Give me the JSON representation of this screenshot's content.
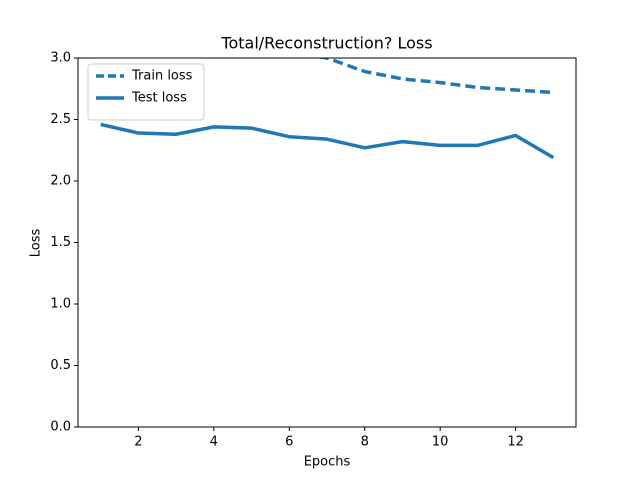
{
  "chart_data": {
    "type": "line",
    "title": "Total/Reconstruction? Loss",
    "x_label": "Epochs",
    "y_label": "Loss",
    "x": [
      1,
      2,
      3,
      4,
      5,
      6,
      7,
      8,
      9,
      10,
      11,
      12,
      13
    ],
    "series": [
      {
        "name": "Train loss",
        "color": "#1f77b4",
        "style": "dashed",
        "values": [
          null,
          null,
          null,
          null,
          null,
          3.05,
          3.0,
          2.89,
          2.83,
          2.8,
          2.76,
          2.74,
          2.72
        ]
      },
      {
        "name": "Test loss",
        "color": "#1f77b4",
        "style": "solid",
        "values": [
          2.46,
          2.39,
          2.38,
          2.44,
          2.43,
          2.36,
          2.34,
          2.27,
          2.32,
          2.29,
          2.29,
          2.37,
          2.19
        ]
      }
    ],
    "xlim": [
      0.4,
      13.6
    ],
    "ylim": [
      0,
      3
    ],
    "xticks": [
      2,
      4,
      6,
      8,
      10,
      12
    ],
    "yticks": [
      {
        "value": 0,
        "label": "0.0"
      },
      {
        "value": 0.5,
        "label": "0.5"
      },
      {
        "value": 1,
        "label": "1.0"
      },
      {
        "value": 1.5,
        "label": "1.5"
      },
      {
        "value": 2,
        "label": "2.0"
      },
      {
        "value": 2.5,
        "label": "2.5"
      },
      {
        "value": 3,
        "label": "3.0"
      }
    ],
    "legend": "upper left"
  }
}
